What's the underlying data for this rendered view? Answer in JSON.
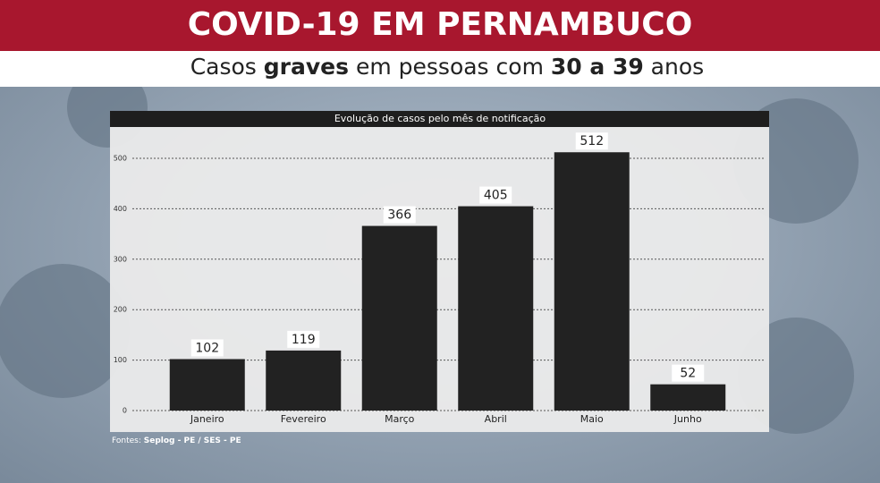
{
  "header": {
    "title": "COVID-19 EM PERNAMBUCO",
    "subtitle_parts": [
      "Casos ",
      "graves",
      " em pessoas com ",
      "30 a 39",
      " anos"
    ]
  },
  "chart_data": {
    "type": "bar",
    "title": "Evolução de casos pelo mês de notificação",
    "categories": [
      "Janeiro",
      "Fevereiro",
      "Março",
      "Abril",
      "Maio",
      "Junho"
    ],
    "values": [
      102,
      119,
      366,
      405,
      512,
      52
    ],
    "color": "#222222",
    "ylim": [
      0,
      550
    ],
    "yticks": [
      0,
      100,
      200,
      300,
      400,
      500
    ],
    "grid": true
  },
  "footer": {
    "source_label": "Fontes:",
    "source": "Seplog - PE / SES - PE"
  }
}
